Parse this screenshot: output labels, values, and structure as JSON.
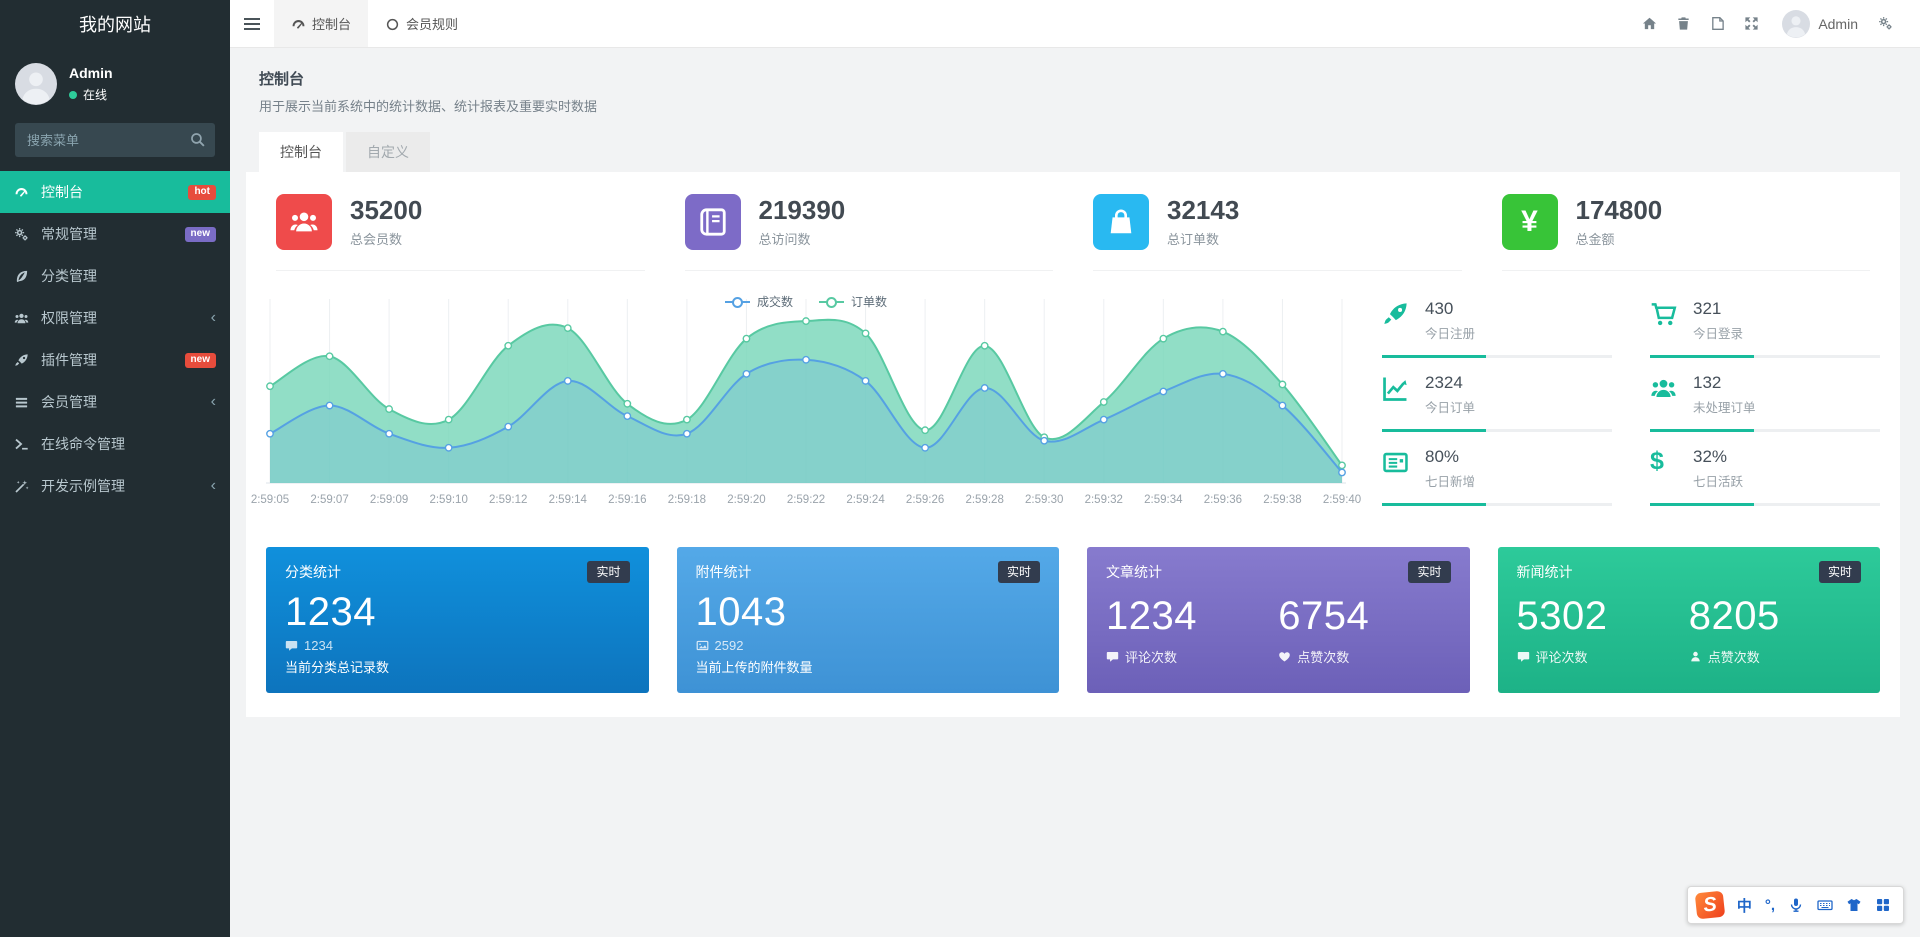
{
  "sidebar": {
    "title": "我的网站",
    "user": {
      "name": "Admin",
      "status": "在线"
    },
    "search_placeholder": "搜索菜单",
    "items": [
      {
        "label": "控制台",
        "icon": "dashboard-icon",
        "badge": "hot",
        "badge_color": "#e74c3c",
        "active": true
      },
      {
        "label": "常规管理",
        "icon": "cogs-icon",
        "badge": "new",
        "badge_color": "#7a6cc5"
      },
      {
        "label": "分类管理",
        "icon": "leaf-icon"
      },
      {
        "label": "权限管理",
        "icon": "group-icon",
        "expandable": true
      },
      {
        "label": "插件管理",
        "icon": "rocket-icon",
        "badge": "new",
        "badge_color": "#e74c3c"
      },
      {
        "label": "会员管理",
        "icon": "list-icon",
        "expandable": true
      },
      {
        "label": "在线命令管理",
        "icon": "terminal-icon"
      },
      {
        "label": "开发示例管理",
        "icon": "magic-icon",
        "expandable": true
      }
    ]
  },
  "topbar": {
    "tabs": [
      {
        "label": "控制台",
        "icon": "dashboard-icon",
        "active": true
      },
      {
        "label": "会员规则",
        "icon": "circle-icon"
      }
    ],
    "right_icons": [
      "home-icon",
      "trash-icon",
      "file-flip-icon",
      "fullscreen-icon",
      "gears-icon"
    ],
    "user_label": "Admin"
  },
  "page": {
    "title": "控制台",
    "subtitle": "用于展示当前系统中的统计数据、统计报表及重要实时数据",
    "tabs": [
      {
        "label": "控制台",
        "active": true
      },
      {
        "label": "自定义"
      }
    ]
  },
  "stat_cards": [
    {
      "value": "35200",
      "label": "总会员数",
      "icon": "group-icon",
      "color": "#ef4b4b"
    },
    {
      "value": "219390",
      "label": "总访问数",
      "icon": "book-icon",
      "color": "#7d6bc7"
    },
    {
      "value": "32143",
      "label": "总订单数",
      "icon": "shopping-bag-icon",
      "color": "#29b9f1"
    },
    {
      "value": "174800",
      "label": "总金额",
      "icon": "yen-icon",
      "color": "#38c438",
      "glyph": "¥"
    }
  ],
  "mini_stats": [
    {
      "value": "430",
      "label": "今日注册",
      "icon": "rocket-icon"
    },
    {
      "value": "321",
      "label": "今日登录",
      "icon": "cart-icon"
    },
    {
      "value": "2324",
      "label": "今日订单",
      "icon": "chart-line-icon"
    },
    {
      "value": "132",
      "label": "未处理订单",
      "icon": "group-icon"
    },
    {
      "value": "80%",
      "label": "七日新增",
      "icon": "newspaper-icon"
    },
    {
      "value": "32%",
      "label": "七日活跃",
      "icon": "dollar-icon",
      "glyph": "$"
    }
  ],
  "summary_cards": [
    {
      "title": "分类统计",
      "badge": "实时",
      "value": "1234",
      "sub_icon": "comment-icon",
      "sub_value": "1234",
      "sub_label": "当前分类总记录数",
      "gradient": [
        "#1090dc",
        "#0d74bd"
      ]
    },
    {
      "title": "附件统计",
      "badge": "实时",
      "value": "1043",
      "sub_icon": "image-icon",
      "sub_value": "2592",
      "sub_label": "当前上传的附件数量",
      "gradient": [
        "#54a9e8",
        "#3e92d5"
      ]
    },
    {
      "title": "文章统计",
      "badge": "实时",
      "gradient": [
        "#877bce",
        "#6c60b8"
      ],
      "cols": [
        {
          "value": "1234",
          "icon": "comment-icon",
          "label": "评论次数"
        },
        {
          "value": "6754",
          "icon": "heart-icon",
          "label": "点赞次数"
        }
      ]
    },
    {
      "title": "新闻统计",
      "badge": "实时",
      "gradient": [
        "#2dca9a",
        "#1db287"
      ],
      "cols": [
        {
          "value": "5302",
          "icon": "comment-icon",
          "label": "评论次数"
        },
        {
          "value": "8205",
          "icon": "user-icon",
          "label": "点赞次数"
        }
      ]
    }
  ],
  "chart_data": {
    "type": "area",
    "x": [
      "2:59:05",
      "2:59:07",
      "2:59:09",
      "2:59:10",
      "2:59:12",
      "2:59:14",
      "2:59:16",
      "2:59:18",
      "2:59:20",
      "2:59:22",
      "2:59:24",
      "2:59:26",
      "2:59:28",
      "2:59:30",
      "2:59:32",
      "2:59:34",
      "2:59:36",
      "2:59:38",
      "2:59:40"
    ],
    "series": [
      {
        "name": "成交数",
        "color": "#55a1e3",
        "fill": "rgba(85,161,227,0.20)",
        "values": [
          28,
          44,
          28,
          20,
          32,
          58,
          38,
          28,
          62,
          70,
          58,
          20,
          54,
          24,
          36,
          52,
          62,
          44,
          6
        ]
      },
      {
        "name": "订单数",
        "color": "#58c9a2",
        "fill": "rgba(126,216,188,0.85)",
        "values": [
          55,
          72,
          42,
          36,
          78,
          88,
          45,
          36,
          82,
          92,
          85,
          30,
          78,
          26,
          46,
          82,
          86,
          56,
          10
        ]
      }
    ],
    "ylim": [
      0,
      100
    ],
    "legend_position": "top-center",
    "grid": "vertical-only",
    "smooth": true
  },
  "ime": {
    "logo": "S",
    "mode": "中",
    "punct": "°,",
    "icons": [
      "mic-icon",
      "keyboard-icon",
      "skin-icon",
      "toolbox-icon"
    ]
  }
}
